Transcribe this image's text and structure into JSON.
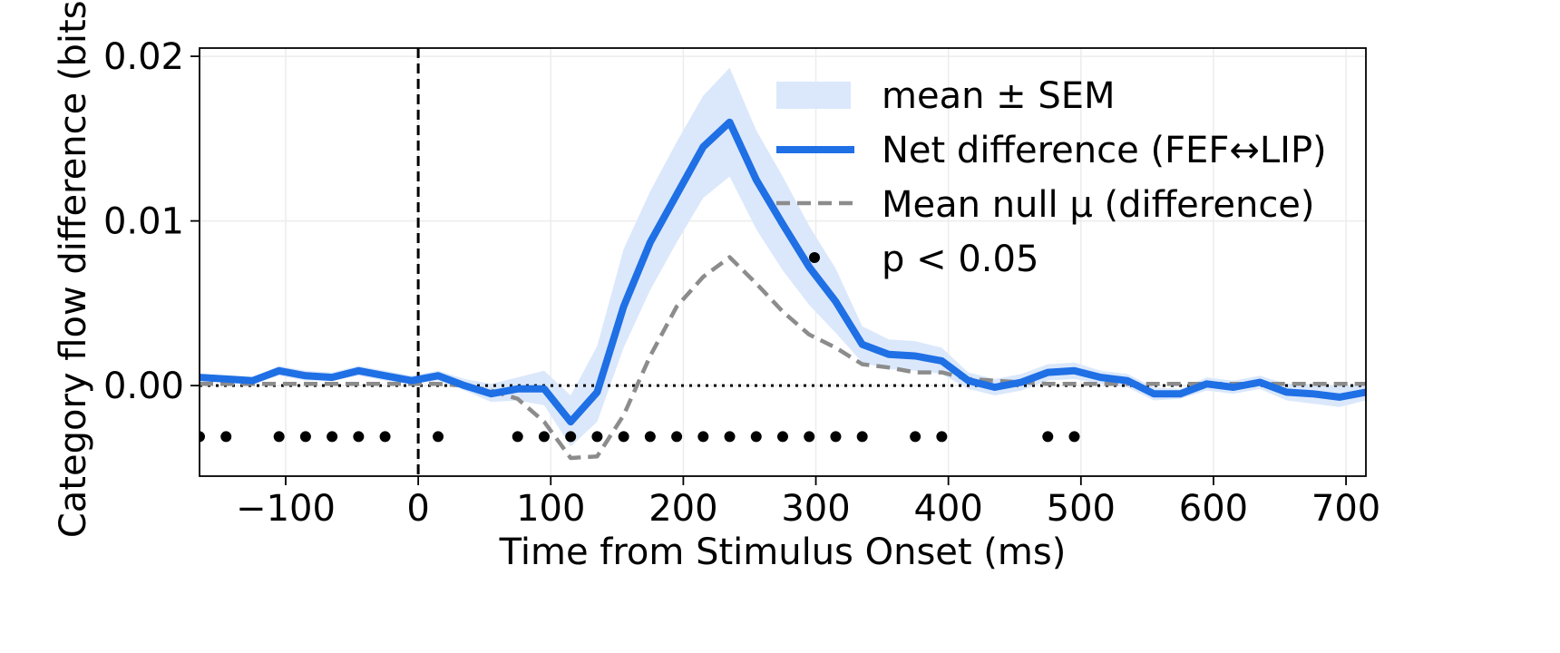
{
  "chart_data": {
    "type": "line",
    "xlabel": "Time from Stimulus Onset (ms)",
    "ylabel": "Category flow difference (bits)",
    "xlim": [
      -165,
      715
    ],
    "ylim": [
      -0.0055,
      0.0205
    ],
    "xticks": [
      -100,
      0,
      100,
      200,
      300,
      400,
      500,
      600,
      700
    ],
    "xtick_labels": [
      "−100",
      "0",
      "100",
      "200",
      "300",
      "400",
      "500",
      "600",
      "700"
    ],
    "yticks": [
      0.0,
      0.01,
      0.02
    ],
    "ytick_labels": [
      "0.00",
      "0.01",
      "0.02"
    ],
    "grid": true,
    "legend_position": "upper right",
    "x": [
      -165,
      -145,
      -125,
      -105,
      -85,
      -65,
      -45,
      -25,
      -5,
      15,
      35,
      55,
      75,
      95,
      115,
      135,
      155,
      175,
      195,
      215,
      235,
      255,
      275,
      295,
      315,
      335,
      355,
      375,
      395,
      415,
      435,
      455,
      475,
      495,
      515,
      535,
      555,
      575,
      595,
      615,
      635,
      655,
      675,
      695,
      715
    ],
    "series": [
      {
        "name": "Net difference (FEF↔LIP)",
        "color": "#1f6fe5",
        "style": "solid",
        "values": [
          0.0005,
          0.0004,
          0.0003,
          0.0009,
          0.0006,
          0.0005,
          0.0009,
          0.0006,
          0.0003,
          0.0006,
          0.0,
          -0.0005,
          -0.0002,
          -0.0002,
          -0.0022,
          -0.0004,
          0.0048,
          0.0087,
          0.0116,
          0.0145,
          0.016,
          0.0125,
          0.0098,
          0.0072,
          0.0051,
          0.0025,
          0.0019,
          0.0018,
          0.0015,
          0.0003,
          -0.0001,
          0.0002,
          0.0008,
          0.0009,
          0.0005,
          0.0003,
          -0.0005,
          -0.0005,
          0.0001,
          -0.0001,
          0.0002,
          -0.0004,
          -0.0005,
          -0.0007,
          -0.0004
        ]
      },
      {
        "name": "Mean null μ (difference)",
        "color": "#8c8c8c",
        "style": "dashed",
        "values": [
          0.0001,
          0.0001,
          0.0001,
          0.0001,
          0.0001,
          0.0001,
          0.0001,
          0.0001,
          0.0001,
          0.0001,
          0.0,
          -0.0003,
          -0.0008,
          -0.0022,
          -0.0044,
          -0.0043,
          -0.0018,
          0.0018,
          0.0048,
          0.0066,
          0.0078,
          0.0062,
          0.0045,
          0.0031,
          0.0023,
          0.0013,
          0.0011,
          0.0008,
          0.0008,
          0.0004,
          0.0003,
          0.0002,
          0.0001,
          0.0001,
          0.0001,
          0.0001,
          0.0001,
          0.0001,
          0.0001,
          0.0001,
          0.0001,
          0.0001,
          0.0001,
          0.0001,
          0.0001
        ]
      }
    ],
    "sem_band": {
      "name": "mean ± SEM",
      "color": "#dbe8fb",
      "lower": [
        0.0003,
        0.0002,
        0.0001,
        0.0006,
        0.0003,
        0.0003,
        0.0006,
        0.0003,
        0.0001,
        0.0003,
        -0.0003,
        -0.001,
        -0.0009,
        -0.0012,
        -0.0037,
        -0.0022,
        0.0023,
        0.0058,
        0.0087,
        0.0114,
        0.0127,
        0.0095,
        0.007,
        0.0049,
        0.0032,
        0.0014,
        0.001,
        0.0009,
        0.0007,
        -0.0002,
        -0.0006,
        -0.0003,
        0.0003,
        0.0004,
        0.0001,
        -0.0001,
        -0.0009,
        -0.0008,
        -0.0003,
        -0.0005,
        -0.0002,
        -0.0009,
        -0.0011,
        -0.0013,
        -0.0009
      ],
      "upper": [
        0.0007,
        0.0006,
        0.0005,
        0.0012,
        0.0009,
        0.0008,
        0.0012,
        0.0009,
        0.0006,
        0.0009,
        0.0004,
        0.0001,
        0.0005,
        0.0009,
        -0.0006,
        0.0024,
        0.0083,
        0.0118,
        0.0148,
        0.0176,
        0.0193,
        0.0155,
        0.0127,
        0.0097,
        0.0071,
        0.0036,
        0.0028,
        0.0027,
        0.0023,
        0.0008,
        0.0004,
        0.0007,
        0.0013,
        0.0014,
        0.0009,
        0.0007,
        -0.0001,
        -0.0002,
        0.0005,
        0.0003,
        0.0006,
        0.0001,
        0.0001,
        0.0,
        0.0001
      ]
    },
    "significance": {
      "name": "p < 0.05",
      "y": -0.0031,
      "x": [
        -165,
        -145,
        -105,
        -85,
        -65,
        -45,
        -25,
        15,
        75,
        95,
        115,
        135,
        155,
        175,
        195,
        215,
        235,
        255,
        275,
        295,
        315,
        335,
        375,
        395,
        475,
        495
      ]
    },
    "reference_lines": {
      "zero_y": 0.0,
      "onset_x": 0
    }
  }
}
